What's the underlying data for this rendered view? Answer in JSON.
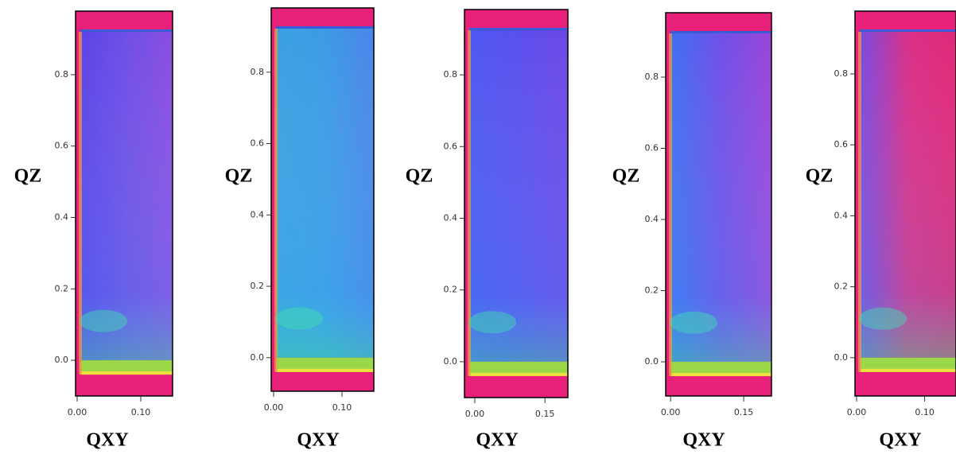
{
  "chart_data": [
    {
      "type": "heatmap",
      "ylabel": "QZ",
      "xlabel": "QXY",
      "xlim": [
        -0.0025,
        0.15
      ],
      "ylim": [
        -0.1,
        0.978
      ],
      "xticks": [
        {
          "value": 0,
          "label": "0.00"
        },
        {
          "value": 0.1,
          "label": "0.10"
        }
      ],
      "yticks": [
        {
          "value": 0,
          "label": "0.0"
        },
        0.2,
        0.4,
        0.6,
        0.8
      ]
    },
    {
      "type": "heatmap",
      "ylabel": "QZ",
      "xlabel": "QXY",
      "xlim": [
        -0.0035,
        0.1465
      ],
      "ylim": [
        -0.094,
        0.98
      ],
      "xticks": [
        {
          "value": 0,
          "label": "0.00"
        },
        {
          "value": 0.1,
          "label": "0.10"
        }
      ],
      "yticks": [
        {
          "value": 0,
          "label": "0.0"
        },
        0.2,
        0.4,
        0.6,
        0.8
      ]
    },
    {
      "type": "heatmap",
      "ylabel": "QZ",
      "xlabel": "QXY",
      "xlim": [
        -0.022,
        0.199
      ],
      "ylim": [
        -0.1,
        0.982
      ],
      "xticks": [
        {
          "value": 0,
          "label": "0.00"
        },
        0.15
      ],
      "yticks": [
        {
          "value": 0,
          "label": "0.0"
        },
        0.2,
        0.4,
        0.6,
        0.8
      ]
    },
    {
      "type": "heatmap",
      "ylabel": "QZ",
      "xlabel": "QXY",
      "xlim": [
        -0.01,
        0.207
      ],
      "ylim": [
        -0.096,
        0.981
      ],
      "xticks": [
        {
          "value": 0,
          "label": "0.00"
        },
        0.15
      ],
      "yticks": [
        {
          "value": 0,
          "label": "0.0"
        },
        0.2,
        0.4,
        0.6,
        0.8
      ]
    },
    {
      "type": "heatmap",
      "ylabel": "QZ",
      "xlabel": "QXY",
      "xlim": [
        -0.0023,
        0.146
      ],
      "ylim": [
        -0.108,
        0.977
      ],
      "xticks": [
        {
          "value": 0,
          "label": "0.00"
        },
        {
          "value": 0.1,
          "label": "0.10"
        }
      ],
      "yticks": [
        {
          "value": 0,
          "label": "0.0"
        },
        0.2,
        0.4,
        0.6,
        0.8
      ]
    }
  ]
}
